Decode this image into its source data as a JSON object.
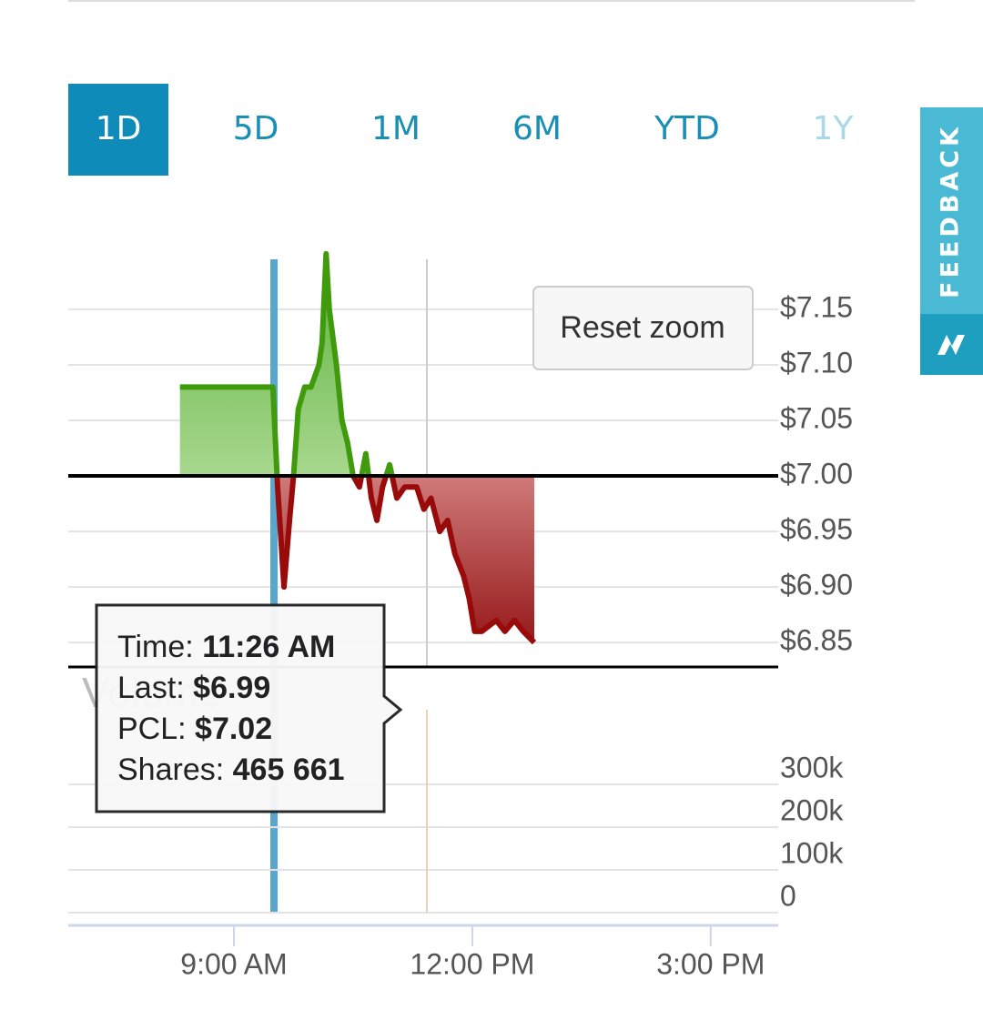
{
  "tabs": [
    "1D",
    "5D",
    "1M",
    "6M",
    "YTD",
    "1Y"
  ],
  "active_tab_index": 0,
  "reset_zoom": "Reset zoom",
  "feedback": "FEEDBACK",
  "tooltip": {
    "time_label": "Time:",
    "time": "11:26 AM",
    "last_label": "Last:",
    "last": "$6.99",
    "pcl_label": "PCL:",
    "pcl": "$7.02",
    "shares_label": "Shares:",
    "shares": "465 661"
  },
  "chart_data": [
    {
      "type": "area",
      "x": [
        8.32,
        9.49,
        9.55,
        9.63,
        9.7,
        9.75,
        9.81,
        9.89,
        9.97,
        10.07,
        10.11,
        10.16,
        10.2,
        10.29,
        10.36,
        10.43,
        10.5,
        10.58,
        10.66,
        10.73,
        10.8,
        10.87,
        10.96,
        11.05,
        11.15,
        11.3,
        11.39,
        11.48,
        11.59,
        11.69,
        11.78,
        11.89,
        11.96,
        12.03,
        12.12,
        12.3,
        12.41,
        12.53,
        12.64,
        12.78
      ],
      "series": [
        {
          "values": [
            7.08,
            7.08,
            6.99,
            6.9,
            6.96,
            7.0,
            7.06,
            7.08,
            7.08,
            7.1,
            7.12,
            7.2,
            7.15,
            7.1,
            7.05,
            7.03,
            7.0,
            6.99,
            7.02,
            6.98,
            6.96,
            6.99,
            7.01,
            6.98,
            6.99,
            6.99,
            6.97,
            6.98,
            6.95,
            6.96,
            6.93,
            6.91,
            6.89,
            6.86,
            6.86,
            6.87,
            6.86,
            6.87,
            6.86,
            6.85
          ],
          "color": "#3f9a0c",
          "negative_color": "#990a0a"
        }
      ],
      "xlim": [
        6.915,
        15.85
      ],
      "ylim": [
        6.828,
        7.195
      ],
      "yticks": [
        {
          "value": 7.15,
          "label": "$7.15"
        },
        {
          "value": 7.1,
          "label": "$7.10"
        },
        {
          "value": 7.05,
          "label": "$7.05"
        },
        {
          "value": 7.0,
          "label": "$7.00"
        },
        {
          "value": 6.95,
          "label": "$6.95"
        },
        {
          "value": 6.9,
          "label": "$6.90"
        },
        {
          "value": 6.85,
          "label": "$6.85"
        }
      ],
      "grid": true
    },
    {
      "type": "volume",
      "title": "Volume",
      "xlim": [
        6.915,
        15.85
      ],
      "xticks": [
        {
          "value": 9,
          "label": "9:00 AM"
        },
        {
          "value": 12,
          "label": "12:00 PM"
        },
        {
          "value": 15,
          "label": "3:00 PM"
        }
      ],
      "ylim": [
        0,
        475000
      ],
      "yticks": [
        {
          "value": 300000,
          "label": "300k"
        },
        {
          "value": 200000,
          "label": "200k"
        },
        {
          "value": 100000,
          "label": "100k"
        },
        0
      ],
      "grid": true
    }
  ]
}
